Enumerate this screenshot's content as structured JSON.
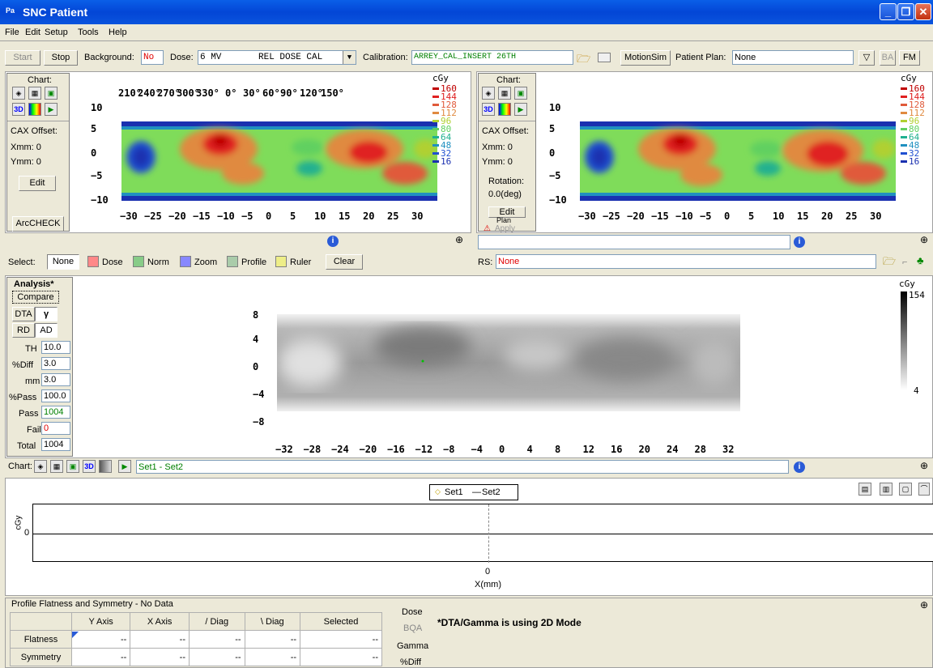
{
  "window": {
    "title": "SNC Patient",
    "app_icon": "Pa"
  },
  "menu": [
    "File",
    "Edit",
    "Setup",
    "Tools",
    "Help"
  ],
  "toolbar": {
    "start": "Start",
    "stop": "Stop",
    "background_label": "Background:",
    "background_value": "No",
    "dose_label": "Dose:",
    "dose_value": "6 MV",
    "dose_mode": "REL DOSE CAL",
    "calibration_label": "Calibration:",
    "calibration_value": "ARREY_CAL_INSERT 26TH",
    "motionsim": "MotionSim",
    "patient_plan_label": "Patient Plan:",
    "patient_plan_value": "None",
    "ba": "BA",
    "fm": "FM"
  },
  "left_chart": {
    "chart_label": "Chart:",
    "cax_label": "CAX Offset:",
    "xmm": "Xmm: 0",
    "ymm": "Ymm: 0",
    "edit": "Edit",
    "arccheck": "ArcCHECK",
    "unit": "cGy",
    "top_ticks": [
      "210°",
      "240°",
      "270°",
      "300°",
      "330°",
      "0°",
      "30°",
      "60°",
      "90°",
      "120°",
      "150°"
    ],
    "y_ticks": [
      "10",
      "5",
      "0",
      "−5",
      "−10"
    ],
    "x_ticks": [
      "−30",
      "−25",
      "−20",
      "−15",
      "−10",
      "−5",
      "0",
      "5",
      "10",
      "15",
      "20",
      "25",
      "30"
    ]
  },
  "right_chart": {
    "chart_label": "Chart:",
    "cax_label": "CAX Offset:",
    "xmm": "Xmm: 0",
    "ymm": "Ymm: 0",
    "rotation_label": "Rotation:",
    "rotation_value": "0.0(deg)",
    "edit": "Edit",
    "plan": "Plan",
    "apply": "Apply",
    "unit": "cGy",
    "y_ticks": [
      "10",
      "5",
      "0",
      "−5",
      "−10"
    ],
    "x_ticks": [
      "−30",
      "−25",
      "−20",
      "−15",
      "−10",
      "−5",
      "0",
      "5",
      "10",
      "15",
      "20",
      "25",
      "30"
    ]
  },
  "dose_legend": [
    {
      "v": "160",
      "c": "#c00000"
    },
    {
      "v": "144",
      "c": "#e02020"
    },
    {
      "v": "128",
      "c": "#e05a3a"
    },
    {
      "v": "112",
      "c": "#e08a40"
    },
    {
      "v": "96",
      "c": "#b0d030"
    },
    {
      "v": "80",
      "c": "#60d060"
    },
    {
      "v": "64",
      "c": "#20b090"
    },
    {
      "v": "48",
      "c": "#2090c0"
    },
    {
      "v": "32",
      "c": "#2050d0"
    },
    {
      "v": "16",
      "c": "#1a30b0"
    }
  ],
  "select_bar": {
    "select_label": "Select:",
    "none": "None",
    "dose": "Dose",
    "norm": "Norm",
    "zoom": "Zoom",
    "profile": "Profile",
    "ruler": "Ruler",
    "clear": "Clear",
    "rs_label": "RS:",
    "rs_value": "None"
  },
  "analysis": {
    "title": "Analysis*",
    "compare": "Compare",
    "dta": "DTA",
    "gamma": "γ",
    "rd": "RD",
    "ad": "AD",
    "th_label": "TH",
    "th_value": "10.0",
    "diff_label": "%Diff",
    "diff_value": "3.0",
    "mm_label": "mm",
    "mm_value": "3.0",
    "pass_pct_label": "%Pass",
    "pass_pct_value": "100.0",
    "pass_label": "Pass",
    "pass_value": "1004",
    "fail_label": "Fail",
    "fail_value": "0",
    "total_label": "Total",
    "total_value": "1004",
    "unit": "cGy",
    "scale_max": "154",
    "scale_min": "4",
    "y_ticks": [
      "8",
      "4",
      "0",
      "−4",
      "−8"
    ],
    "x_ticks": [
      "−32",
      "−28",
      "−24",
      "−20",
      "−16",
      "−12",
      "−8",
      "−4",
      "0",
      "4",
      "8",
      "12",
      "16",
      "20",
      "24",
      "28",
      "32"
    ]
  },
  "chart_bar": {
    "chart_label": "Chart:",
    "set_label": "Set1 - Set2"
  },
  "profile": {
    "legend_set1": "Set1",
    "legend_set2": "Set2",
    "y_label": "cGy",
    "y_tick": "0",
    "x_tick": "0",
    "x_label": "X(mm)"
  },
  "flatness": {
    "title": "Profile Flatness and Symmetry - No Data",
    "columns": [
      "Y Axis",
      "X Axis",
      "/ Diag",
      "\\ Diag",
      "Selected"
    ],
    "rows": [
      {
        "label": "Flatness",
        "values": [
          "--",
          "--",
          "--",
          "--",
          "--"
        ]
      },
      {
        "label": "Symmetry",
        "values": [
          "--",
          "--",
          "--",
          "--",
          "--"
        ]
      }
    ]
  },
  "side_labels": {
    "dose": "Dose",
    "bqa": "BQA",
    "gamma": "Gamma",
    "diff": "%Diff"
  },
  "message": "*DTA/Gamma is using 2D Mode",
  "colors": {
    "title_blue": "#0346d6",
    "accent_red": "#ff0000",
    "accent_green": "#008000"
  }
}
